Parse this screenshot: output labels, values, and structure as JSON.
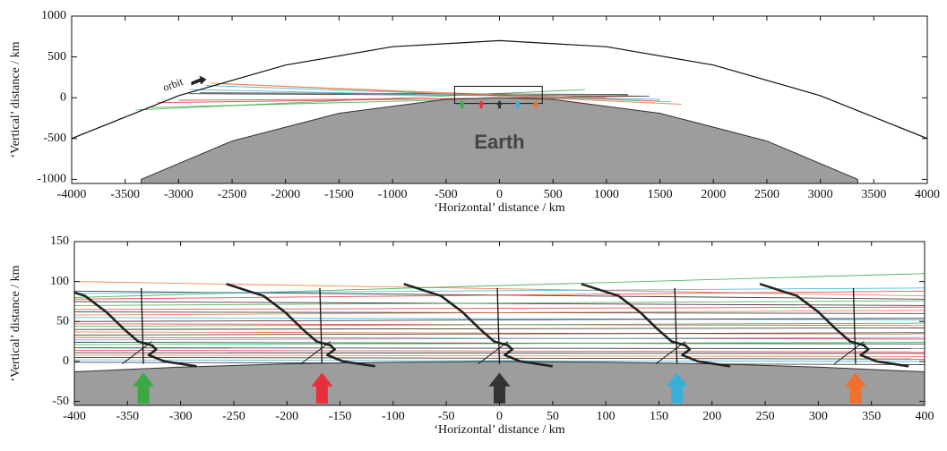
{
  "chart_data": [
    {
      "type": "ray-trace",
      "xlabel": "‘Horizontal’ distance / km",
      "ylabel": "‘Vertical’ distance / km",
      "xlim": [
        -4000,
        4000
      ],
      "ylim": [
        -1050,
        1000
      ],
      "xticks": [
        -4000,
        -3500,
        -3000,
        -2500,
        -2000,
        -1500,
        -1000,
        -500,
        0,
        500,
        1000,
        1500,
        2000,
        2500,
        3000,
        3500,
        4000
      ],
      "yticks": [
        -1000,
        -500,
        0,
        500,
        1000
      ],
      "annotations": {
        "earth": "Earth",
        "orbit": "orbit"
      },
      "orbit": {
        "x": [
          -4000,
          -3000,
          -2000,
          -1000,
          0,
          1000,
          2000,
          3000,
          4000
        ],
        "y": [
          -500,
          25,
          400,
          625,
          700,
          625,
          400,
          25,
          -500
        ]
      },
      "surface": {
        "x": [
          -3350,
          -2500,
          -1500,
          -500,
          0,
          500,
          1500,
          2500,
          3350
        ],
        "y": [
          -1000,
          -530,
          -190,
          -20,
          0,
          -20,
          -190,
          -530,
          -1000
        ]
      },
      "box": {
        "x": [
          -420,
          400
        ],
        "y": [
          -70,
          140
        ]
      },
      "rays": [
        {
          "color": "#3aa845",
          "x": [
            -3400,
            800
          ],
          "y": [
            -150,
            100
          ]
        },
        {
          "color": "#3aa845",
          "x": [
            -3300,
            1200
          ],
          "y": [
            -120,
            30
          ]
        },
        {
          "color": "#e8303a",
          "x": [
            -3200,
            1300
          ],
          "y": [
            -60,
            20
          ]
        },
        {
          "color": "#e8303a",
          "x": [
            -3000,
            1000
          ],
          "y": [
            -30,
            0
          ]
        },
        {
          "color": "#222222",
          "x": [
            -2900,
            1400
          ],
          "y": [
            50,
            20
          ]
        },
        {
          "color": "#222222",
          "x": [
            -2800,
            1200
          ],
          "y": [
            60,
            40
          ]
        },
        {
          "color": "#3ab0d8",
          "x": [
            -2900,
            1500
          ],
          "y": [
            100,
            -20
          ]
        },
        {
          "color": "#3ab0d8",
          "x": [
            -2750,
            1600
          ],
          "y": [
            150,
            -50
          ]
        },
        {
          "color": "#f07030",
          "x": [
            -2700,
            1700
          ],
          "y": [
            180,
            -80
          ]
        },
        {
          "color": "#f07030",
          "x": [
            -2600,
            1500
          ],
          "y": [
            170,
            -40
          ]
        }
      ],
      "arrows": {
        "x": [
          -350,
          -170,
          0,
          170,
          340
        ],
        "colors": [
          "#3aa845",
          "#e8303a",
          "#333333",
          "#3ab0d8",
          "#f07030"
        ],
        "base": -130,
        "tip": -30
      }
    },
    {
      "type": "ray-trace",
      "xlabel": "‘Horizontal’ distance / km",
      "ylabel": "‘Vertical’ distance / km",
      "xlim": [
        -400,
        400
      ],
      "ylim": [
        -55,
        150
      ],
      "xticks": [
        -400,
        -350,
        -300,
        -250,
        -200,
        -150,
        -100,
        -50,
        0,
        50,
        100,
        150,
        200,
        250,
        300,
        350,
        400
      ],
      "yticks": [
        -50,
        0,
        50,
        100,
        150
      ],
      "surface": {
        "x": [
          -400,
          -300,
          -200,
          -100,
          0,
          100,
          200,
          300,
          400
        ],
        "y": [
          -13,
          -7,
          -3,
          -1,
          0,
          -1,
          -3,
          -7,
          -13
        ]
      },
      "rays": [
        {
          "color": "#f07030",
          "x": [
            -400,
            400
          ],
          "y": [
            100,
            82
          ]
        },
        {
          "color": "#3aa845",
          "x": [
            -400,
            400
          ],
          "y": [
            80,
            110
          ]
        },
        {
          "color": "#222222",
          "x": [
            -400,
            400
          ],
          "y": [
            88,
            78
          ]
        },
        {
          "color": "#3ab0d8",
          "x": [
            -400,
            400
          ],
          "y": [
            85,
            92
          ]
        },
        {
          "color": "#e8303a",
          "x": [
            -400,
            400
          ],
          "y": [
            78,
            88
          ]
        },
        {
          "color": "#222222",
          "x": [
            -400,
            400
          ],
          "y": [
            75,
            70
          ]
        },
        {
          "color": "#3aa845",
          "x": [
            -400,
            400
          ],
          "y": [
            70,
            76
          ]
        },
        {
          "color": "#e8303a",
          "x": [
            -400,
            400
          ],
          "y": [
            65,
            68
          ]
        },
        {
          "color": "#222222",
          "x": [
            -400,
            400
          ],
          "y": [
            62,
            60
          ]
        },
        {
          "color": "#f07030",
          "x": [
            -400,
            400
          ],
          "y": [
            58,
            64
          ]
        },
        {
          "color": "#3ab0d8",
          "x": [
            -400,
            400
          ],
          "y": [
            55,
            52
          ]
        },
        {
          "color": "#222222",
          "x": [
            -400,
            400
          ],
          "y": [
            50,
            54
          ]
        },
        {
          "color": "#e8303a",
          "x": [
            -400,
            400
          ],
          "y": [
            47,
            45
          ]
        },
        {
          "color": "#3aa845",
          "x": [
            -400,
            400
          ],
          "y": [
            44,
            48
          ]
        },
        {
          "color": "#222222",
          "x": [
            -400,
            400
          ],
          "y": [
            40,
            42
          ]
        },
        {
          "color": "#f07030",
          "x": [
            -400,
            400
          ],
          "y": [
            37,
            34
          ]
        },
        {
          "color": "#222222",
          "x": [
            -400,
            400
          ],
          "y": [
            33,
            36
          ]
        },
        {
          "color": "#e8303a",
          "x": [
            -400,
            400
          ],
          "y": [
            30,
            28
          ]
        },
        {
          "color": "#3ab0d8",
          "x": [
            -400,
            400
          ],
          "y": [
            27,
            30
          ]
        },
        {
          "color": "#222222",
          "x": [
            -400,
            400
          ],
          "y": [
            24,
            22
          ]
        },
        {
          "color": "#3aa845",
          "x": [
            -400,
            400
          ],
          "y": [
            21,
            24
          ]
        },
        {
          "color": "#222222",
          "x": [
            -400,
            400
          ],
          "y": [
            17,
            16
          ]
        },
        {
          "color": "#e8303a",
          "x": [
            -400,
            400
          ],
          "y": [
            14,
            12
          ]
        },
        {
          "color": "#222222",
          "x": [
            -400,
            400
          ],
          "y": [
            11,
            10
          ]
        },
        {
          "color": "#f07030",
          "x": [
            -400,
            400
          ],
          "y": [
            8,
            6
          ]
        },
        {
          "color": "#222222",
          "x": [
            -400,
            400
          ],
          "y": [
            5,
            3
          ]
        },
        {
          "color": "#3ab0d8",
          "x": [
            -400,
            400
          ],
          "y": [
            2,
            0
          ]
        },
        {
          "color": "#222222",
          "x": [
            -400,
            400
          ],
          "y": [
            -1,
            -4
          ]
        }
      ],
      "profiles": {
        "x": [
          -335,
          -167,
          0,
          167,
          335
        ],
        "dx": [
          -90,
          -55,
          -35,
          -18,
          -5,
          8,
          12,
          5,
          20,
          50
        ],
        "dy": [
          97,
          82,
          62,
          40,
          25,
          20,
          15,
          8,
          0,
          -6
        ],
        "staff_dx": [
          -2,
          0
        ],
        "staff_dy": [
          92,
          -3
        ],
        "diag_dx": [
          -20,
          8
        ],
        "diag_dy": [
          -3,
          25
        ]
      },
      "arrows": {
        "x": [
          -335,
          -167,
          0,
          167,
          335
        ],
        "colors": [
          "#3aa845",
          "#e8303a",
          "#333333",
          "#3ab0d8",
          "#f07030"
        ],
        "base": -52,
        "tip": -15
      }
    }
  ]
}
